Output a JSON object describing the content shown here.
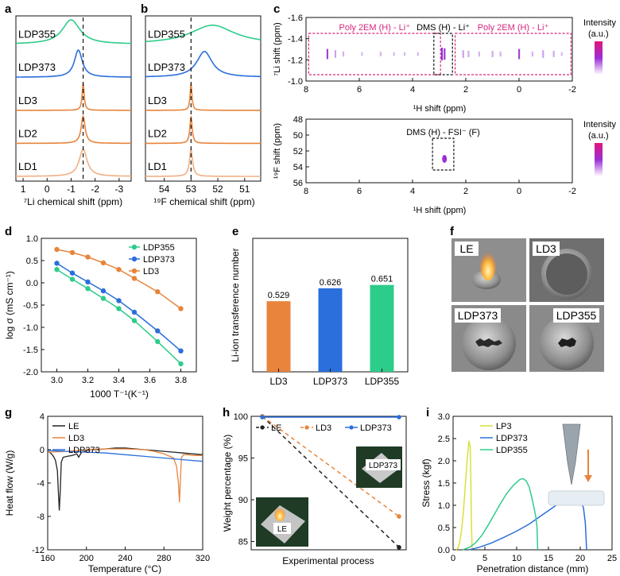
{
  "colors": {
    "ldp355": "#2ecc8a",
    "ldp373": "#2a6fdb",
    "ld": "#e8843c",
    "ld1": "#f0b083",
    "le": "#222222",
    "lp3": "#d9e13a",
    "tick_gray": "#333333",
    "pink": "#d6267c"
  },
  "panel_letters": {
    "a": "a",
    "b": "b",
    "c": "c",
    "d": "d",
    "e": "e",
    "f": "f",
    "g": "g",
    "h": "h",
    "i": "i"
  },
  "panel_a": {
    "xlabel": "⁷Li chemical shift (ppm)",
    "xticks": [
      1,
      0,
      -1,
      -2,
      -3
    ],
    "xrange": [
      1.3,
      -3.5
    ],
    "dashed_at": -1.5,
    "traces": [
      {
        "label": "LDP355",
        "color_key": "ldp355",
        "peak": -1.0,
        "width": 0.45,
        "height": 0.9
      },
      {
        "label": "LDP373",
        "color_key": "ldp373",
        "peak": -1.3,
        "width": 0.2,
        "height": 1.0
      },
      {
        "label": "LD3",
        "color_key": "ld",
        "peak": -1.5,
        "width": 0.05,
        "height": 1.0
      },
      {
        "label": "LD2",
        "color_key": "ld",
        "peak": -1.5,
        "width": 0.1,
        "height": 1.0
      },
      {
        "label": "LD1",
        "color_key": "ld1",
        "peak": -1.5,
        "width": 0.2,
        "height": 1.0
      }
    ]
  },
  "panel_b": {
    "xlabel": "¹⁹F chemical shift (ppm)",
    "xticks": [
      54,
      53,
      52,
      51
    ],
    "xrange": [
      54.7,
      50.4
    ],
    "dashed_at": 53.0,
    "traces": [
      {
        "label": "LDP355",
        "color_key": "ldp355",
        "peak": 52.2,
        "width": 1.0,
        "height": 0.7
      },
      {
        "label": "LDP373",
        "color_key": "ldp373",
        "peak": 52.5,
        "width": 0.35,
        "height": 0.95
      },
      {
        "label": "LD3",
        "color_key": "ld",
        "peak": 53.0,
        "width": 0.04,
        "height": 1.0
      },
      {
        "label": "LD2",
        "color_key": "ld",
        "peak": 53.0,
        "width": 0.05,
        "height": 1.0
      },
      {
        "label": "LD1",
        "color_key": "ld1",
        "peak": 53.0,
        "width": 0.07,
        "height": 1.0
      }
    ]
  },
  "panel_c": {
    "top": {
      "ylabel": "⁷Li shift (ppm)",
      "yticks": [
        "-1.6",
        "-1.4",
        "-1.2",
        "-1.0"
      ],
      "xticks": [
        "8",
        "6",
        "4",
        "2",
        "0",
        "-2"
      ],
      "xlabel": "¹H shift (ppm)",
      "box_left": "Poly 2EM (H) - Li⁺",
      "box_mid": "DMS (H) - Li⁺",
      "box_right": "Poly 2EM (H) - Li⁺",
      "peaks_x": [
        7.2,
        6.9,
        6.6,
        5.9,
        5.2,
        4.7,
        4.3,
        3.8,
        2.9,
        2.8,
        2.1,
        1.9,
        1.5,
        1.0,
        0.7,
        0.0,
        -0.5,
        -0.9,
        -1.3,
        -1.6
      ],
      "peaks_strength": [
        0.8,
        0.6,
        0.4,
        0.3,
        0.35,
        0.3,
        0.3,
        0.3,
        1.0,
        0.9,
        0.6,
        0.5,
        0.4,
        0.5,
        0.4,
        0.8,
        0.4,
        0.6,
        0.5,
        0.3
      ]
    },
    "bottom": {
      "ylabel": "¹⁹F shift (ppm)",
      "yticks": [
        "48",
        "50",
        "52",
        "54",
        "56"
      ],
      "xticks": [
        "8",
        "6",
        "4",
        "2",
        "0",
        "-2"
      ],
      "xlabel": "¹H shift (ppm)",
      "box_label": "DMS (H) - FSI⁻ (F)",
      "peak_x": 2.8,
      "peak_y": 53.0
    },
    "intensity_title": "Intensity",
    "intensity_unit": "(a.u.)"
  },
  "chart_d": {
    "type": "line",
    "xlabel": "1000 T⁻¹(K⁻¹)",
    "ylabel": "log σ (mS cm⁻¹)",
    "xlim": [
      2.9,
      3.9
    ],
    "ylim": [
      -2.0,
      1.0
    ],
    "xticks": [
      "3.0",
      "3.2",
      "3.4",
      "3.6",
      "3.8"
    ],
    "yticks": [
      "-2.0",
      "-1.5",
      "-1.0",
      "-0.5",
      "0.0",
      "0.5",
      "1.0"
    ],
    "x": [
      3.0,
      3.1,
      3.2,
      3.3,
      3.4,
      3.5,
      3.65,
      3.8
    ],
    "series": [
      {
        "name": "LDP355",
        "color_key": "ldp355",
        "values": [
          0.3,
          0.08,
          -0.13,
          -0.35,
          -0.58,
          -0.85,
          -1.32,
          -1.82
        ]
      },
      {
        "name": "LDP373",
        "color_key": "ldp373",
        "values": [
          0.44,
          0.22,
          0.02,
          -0.18,
          -0.4,
          -0.66,
          -1.08,
          -1.53
        ]
      },
      {
        "name": "LD3",
        "color_key": "ld",
        "values": [
          0.75,
          0.68,
          0.58,
          0.45,
          0.3,
          0.1,
          -0.2,
          -0.58
        ]
      }
    ]
  },
  "chart_e": {
    "type": "bar",
    "ylabel": "Li-ion transference number",
    "categories": [
      "LD3",
      "LDP373",
      "LDP355"
    ],
    "values": [
      0.529,
      0.626,
      0.651
    ],
    "value_labels": [
      "0.529",
      "0.626",
      "0.651"
    ],
    "color_keys": [
      "ld",
      "ldp373",
      "ldp355"
    ],
    "ylim": [
      0,
      1.0
    ]
  },
  "panel_f": {
    "labels": [
      "LE",
      "LD3",
      "LDP373",
      "LDP355"
    ]
  },
  "chart_g": {
    "type": "line",
    "xlabel": "Temperature (°C)",
    "ylabel": "Heat flow (W/g)",
    "xlim": [
      160,
      320
    ],
    "ylim": [
      -12,
      4
    ],
    "xticks": [
      "160",
      "200",
      "240",
      "280",
      "320"
    ],
    "yticks": [
      "-12",
      "-8",
      "-4",
      "0",
      "4"
    ],
    "series": [
      {
        "name": "LE",
        "color_key": "le",
        "x": [
          160,
          163,
          166,
          168,
          170,
          171,
          172,
          173,
          174,
          176,
          180,
          185,
          190,
          192,
          195,
          198,
          200,
          205,
          210,
          220,
          230,
          240,
          250,
          260,
          270,
          280,
          290,
          300,
          310,
          320
        ],
        "y": [
          -0.2,
          -0.4,
          -0.8,
          -1.3,
          -2.5,
          -5.0,
          -7.3,
          -5.0,
          -1.5,
          -0.9,
          -0.8,
          -0.7,
          -0.5,
          -0.9,
          -0.3,
          -0.2,
          -0.1,
          0.0,
          0.0,
          0.1,
          0.2,
          0.2,
          0.1,
          0.0,
          -0.1,
          -0.2,
          -0.3,
          -0.4,
          -0.5,
          -0.6
        ]
      },
      {
        "name": "LD3",
        "color_key": "ld",
        "x": [
          160,
          180,
          200,
          220,
          240,
          260,
          270,
          280,
          290,
          293,
          295,
          296,
          297,
          298,
          300,
          305,
          310,
          320
        ],
        "y": [
          -0.3,
          -0.2,
          0.0,
          0.1,
          0.1,
          0.0,
          -0.2,
          -0.5,
          -1.0,
          -2.0,
          -4.0,
          -6.3,
          -3.5,
          -1.0,
          -0.6,
          -0.6,
          -0.7,
          -0.7
        ]
      },
      {
        "name": "LDP373",
        "color_key": "ldp373",
        "x": [
          160,
          180,
          200,
          220,
          240,
          260,
          280,
          300,
          320
        ],
        "y": [
          -0.1,
          -0.2,
          -0.3,
          -0.4,
          -0.6,
          -0.8,
          -1.0,
          -1.2,
          -1.4
        ]
      }
    ]
  },
  "chart_h": {
    "type": "line",
    "xlabel": "Experimental process",
    "ylabel": "Weight percentage (%)",
    "ylim": [
      84,
      100
    ],
    "yticks": [
      "85",
      "90",
      "95",
      "100"
    ],
    "series": [
      {
        "name": "LE",
        "color_key": "le",
        "dash": true,
        "values": [
          100,
          84.3
        ]
      },
      {
        "name": "LD3",
        "color_key": "ld",
        "dash": true,
        "values": [
          100,
          88.0
        ]
      },
      {
        "name": "LDP373",
        "color_key": "ldp373",
        "dash": false,
        "values": [
          99.9,
          99.9
        ]
      }
    ],
    "photo_labels": [
      "LE",
      "LDP373"
    ]
  },
  "chart_i": {
    "type": "line",
    "xlabel": "Penetration distance (mm)",
    "ylabel": "Stress (kgf)",
    "xlim": [
      0,
      25
    ],
    "ylim": [
      0,
      3.0
    ],
    "xticks": [
      "0",
      "5",
      "10",
      "15",
      "20",
      "25"
    ],
    "yticks": [
      "0.0",
      "0.5",
      "1.0",
      "1.5",
      "2.0",
      "2.5",
      "3.0"
    ],
    "series": [
      {
        "name": "LP3",
        "color_key": "lp3",
        "x": [
          0.5,
          0.8,
          1.0,
          1.3,
          1.6,
          1.9,
          2.2,
          2.5,
          2.7,
          2.8,
          2.9,
          3.0
        ],
        "y": [
          0.0,
          0.05,
          0.15,
          0.4,
          0.8,
          1.4,
          2.0,
          2.45,
          2.3,
          1.5,
          0.5,
          0.0
        ]
      },
      {
        "name": "LDP373",
        "color_key": "ldp373",
        "x": [
          2.5,
          4,
          6,
          8,
          10,
          12,
          14,
          15,
          16,
          17,
          18,
          19,
          20,
          20.5,
          20.8,
          21.0
        ],
        "y": [
          0.0,
          0.05,
          0.15,
          0.28,
          0.42,
          0.58,
          0.78,
          0.88,
          0.98,
          1.08,
          1.12,
          1.12,
          1.1,
          0.95,
          0.6,
          0.0
        ]
      },
      {
        "name": "LDP355",
        "color_key": "ldp355",
        "x": [
          1.5,
          2.5,
          3.5,
          4.5,
          5.5,
          6.5,
          7.5,
          8.5,
          9.5,
          10.5,
          11.0,
          11.5,
          12.0,
          12.5,
          13.0,
          13.2,
          13.3
        ],
        "y": [
          0.0,
          0.05,
          0.15,
          0.32,
          0.55,
          0.8,
          1.05,
          1.28,
          1.45,
          1.58,
          1.6,
          1.55,
          1.4,
          1.1,
          0.75,
          0.5,
          0.0
        ]
      }
    ]
  }
}
